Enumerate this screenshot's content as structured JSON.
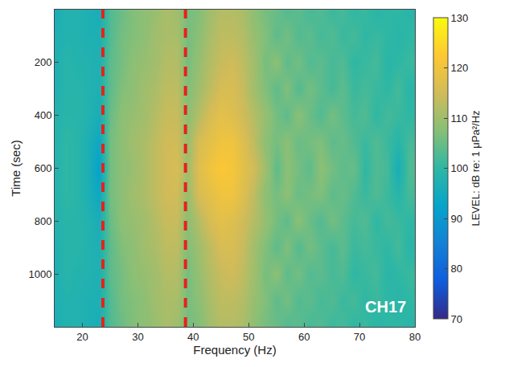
{
  "chart_data": {
    "type": "heatmap",
    "x_label": "Frequency (Hz)",
    "y_label": "Time (sec)",
    "xlim": [
      15,
      80
    ],
    "xticks": [
      20,
      30,
      40,
      50,
      60,
      70,
      80
    ],
    "ylim": [
      1200,
      0
    ],
    "yticks": [
      200,
      400,
      600,
      800,
      1000
    ],
    "colorbar_title": "LEVEL: dB re: 1 μPa²/Hz",
    "color_range": [
      70,
      130
    ],
    "color_ticks": [
      70,
      80,
      90,
      100,
      110,
      120,
      130
    ],
    "vlines": [
      23.7,
      38.6
    ],
    "annotations": [
      "CH17"
    ],
    "x": [
      15,
      17,
      19,
      21,
      23,
      25,
      27,
      29,
      31,
      33,
      35,
      37,
      39,
      41,
      43,
      45,
      47,
      49,
      51,
      53,
      55,
      57,
      59,
      61,
      63,
      65,
      67,
      69,
      71,
      73,
      75,
      77,
      79
    ],
    "y": [
      0,
      100,
      200,
      300,
      400,
      500,
      600,
      700,
      800,
      900,
      1000,
      1100,
      1200
    ],
    "z": [
      [
        96,
        98,
        98,
        97,
        96,
        103,
        105,
        107,
        108,
        109,
        111,
        110,
        106,
        107,
        110,
        112,
        112,
        111,
        108,
        106,
        105,
        103,
        104,
        102,
        103,
        101,
        102,
        100,
        101,
        99,
        100,
        100,
        99
      ],
      [
        97,
        98,
        98,
        97,
        97,
        103,
        106,
        107,
        108,
        110,
        111,
        111,
        106,
        108,
        111,
        113,
        113,
        112,
        109,
        107,
        104,
        106,
        103,
        104,
        102,
        103,
        101,
        102,
        100,
        101,
        100,
        99,
        100
      ],
      [
        97,
        99,
        98,
        98,
        97,
        104,
        106,
        108,
        109,
        110,
        112,
        112,
        106,
        109,
        112,
        114,
        115,
        113,
        110,
        106,
        108,
        104,
        106,
        103,
        104,
        102,
        103,
        100,
        101,
        102,
        99,
        100,
        101
      ],
      [
        97,
        99,
        99,
        98,
        97,
        104,
        107,
        108,
        110,
        111,
        113,
        113,
        107,
        110,
        113,
        116,
        116,
        114,
        110,
        107,
        104,
        107,
        103,
        106,
        104,
        102,
        104,
        101,
        102,
        101,
        100,
        102,
        99
      ],
      [
        98,
        99,
        99,
        98,
        96,
        105,
        108,
        109,
        110,
        112,
        114,
        114,
        108,
        112,
        116,
        118,
        117,
        115,
        112,
        109,
        106,
        104,
        108,
        105,
        103,
        106,
        104,
        102,
        103,
        100,
        102,
        101,
        100
      ],
      [
        98,
        100,
        99,
        97,
        94,
        106,
        108,
        110,
        111,
        113,
        115,
        115,
        109,
        116,
        118,
        120,
        120,
        117,
        113,
        108,
        106,
        108,
        105,
        106,
        107,
        104,
        105,
        103,
        101,
        103,
        101,
        99,
        102
      ],
      [
        98,
        100,
        99,
        97,
        92,
        106,
        108,
        109,
        111,
        113,
        115,
        116,
        110,
        117,
        120,
        122,
        121,
        118,
        115,
        110,
        104,
        108,
        106,
        104,
        108,
        106,
        104,
        105,
        100,
        103,
        102,
        96,
        103
      ],
      [
        98,
        100,
        99,
        97,
        94,
        106,
        108,
        110,
        111,
        113,
        115,
        115,
        109,
        116,
        118,
        120,
        120,
        117,
        113,
        108,
        106,
        108,
        105,
        106,
        107,
        104,
        105,
        103,
        101,
        103,
        101,
        99,
        102
      ],
      [
        98,
        99,
        99,
        98,
        96,
        105,
        108,
        109,
        110,
        112,
        114,
        114,
        108,
        112,
        116,
        118,
        117,
        115,
        112,
        109,
        106,
        104,
        108,
        105,
        103,
        106,
        104,
        102,
        103,
        100,
        102,
        101,
        100
      ],
      [
        97,
        99,
        99,
        98,
        97,
        104,
        107,
        108,
        110,
        111,
        113,
        113,
        107,
        110,
        113,
        116,
        116,
        114,
        110,
        107,
        104,
        107,
        103,
        106,
        104,
        102,
        104,
        101,
        102,
        101,
        100,
        102,
        99
      ],
      [
        97,
        99,
        98,
        98,
        97,
        104,
        106,
        108,
        109,
        110,
        112,
        112,
        106,
        109,
        112,
        114,
        115,
        113,
        110,
        106,
        108,
        104,
        106,
        103,
        104,
        102,
        103,
        100,
        101,
        102,
        99,
        100,
        101
      ],
      [
        97,
        98,
        98,
        97,
        97,
        103,
        106,
        107,
        108,
        110,
        111,
        111,
        106,
        108,
        111,
        113,
        113,
        112,
        109,
        107,
        104,
        106,
        103,
        104,
        102,
        103,
        101,
        102,
        100,
        101,
        100,
        99,
        100
      ],
      [
        96,
        98,
        98,
        97,
        96,
        103,
        105,
        107,
        108,
        109,
        111,
        110,
        106,
        107,
        110,
        112,
        112,
        111,
        108,
        106,
        105,
        103,
        104,
        102,
        103,
        101,
        102,
        100,
        101,
        99,
        100,
        100,
        99
      ]
    ]
  }
}
